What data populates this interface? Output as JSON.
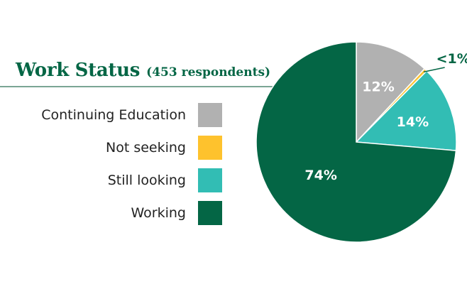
{
  "chart_data": {
    "type": "pie",
    "title": "Work Status",
    "subtitle": "(453 respondents)",
    "categories": [
      "Continuing Education",
      "Not seeking",
      "Still looking",
      "Working"
    ],
    "values": [
      12,
      0.5,
      14,
      74
    ],
    "value_labels": [
      "12%",
      "<1%",
      "14%",
      "74%"
    ],
    "colors": [
      "#b1b1b1",
      "#fec22d",
      "#32bdb4",
      "#046645"
    ],
    "start": "top, clockwise",
    "legend_position": "left"
  }
}
